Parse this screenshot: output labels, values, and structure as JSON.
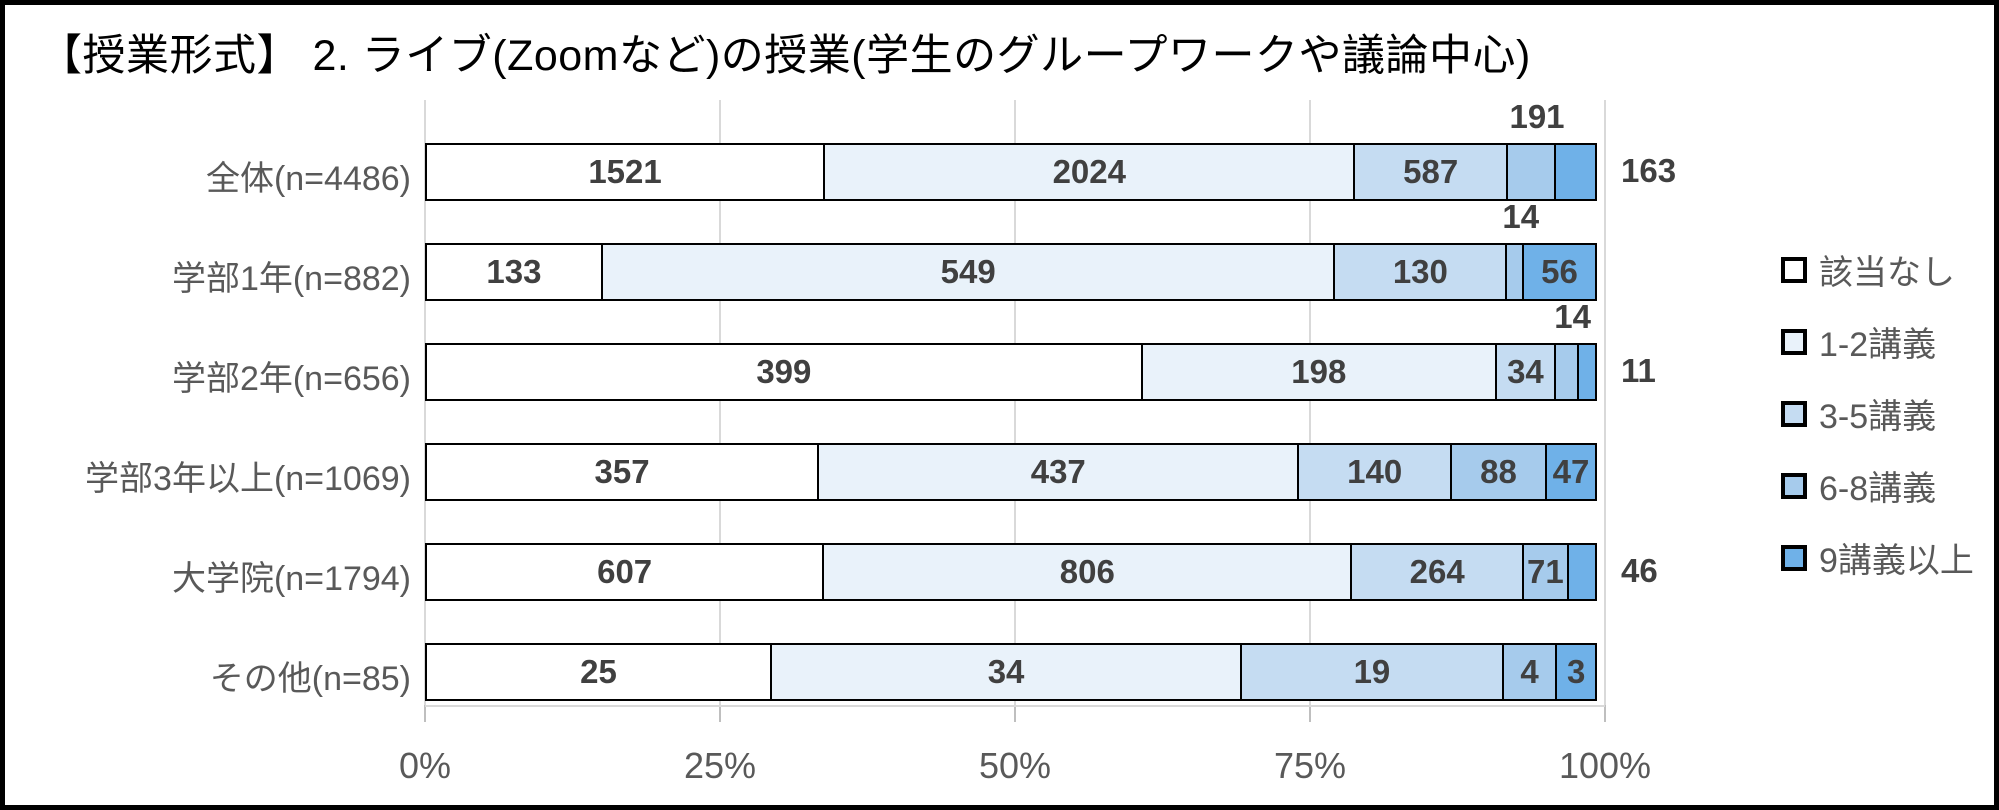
{
  "title": "【授業形式】 2. ライブ(Zoomなど)の授業(学生のグループワークや議論中心)",
  "chart_data": {
    "type": "bar",
    "orientation": "horizontal",
    "stacked": true,
    "normalized_to_percent": true,
    "title": "【授業形式】 2. ライブ(Zoomなど)の授業(学生のグループワークや議論中心)",
    "series_labels": [
      "該当なし",
      "1-2講義",
      "3-5講義",
      "6-8講義",
      "9講義以上"
    ],
    "palette": [
      "#ffffff",
      "#e9f2fa",
      "#c5dcf2",
      "#a6cbec",
      "#6fb1e8"
    ],
    "categories": [
      "全体(n=4486)",
      "学部1年(n=882)",
      "学部2年(n=656)",
      "学部3年以上(n=1069)",
      "大学院(n=1794)",
      "その他(n=85)"
    ],
    "rows": [
      {
        "category": "全体(n=4486)",
        "values": [
          1521,
          2024,
          587,
          191,
          163
        ],
        "label_positions": [
          "in",
          "in",
          "in",
          "above",
          "right"
        ]
      },
      {
        "category": "学部1年(n=882)",
        "values": [
          133,
          549,
          130,
          14,
          56
        ],
        "label_positions": [
          "in",
          "in",
          "in",
          "above",
          "in"
        ]
      },
      {
        "category": "学部2年(n=656)",
        "values": [
          399,
          198,
          34,
          14,
          11
        ],
        "label_positions": [
          "in",
          "in",
          "in",
          "above",
          "right"
        ]
      },
      {
        "category": "学部3年以上(n=1069)",
        "values": [
          357,
          437,
          140,
          88,
          47
        ],
        "label_positions": [
          "in",
          "in",
          "in",
          "in",
          "in"
        ]
      },
      {
        "category": "大学院(n=1794)",
        "values": [
          607,
          806,
          264,
          71,
          46
        ],
        "label_positions": [
          "in",
          "in",
          "in",
          "in",
          "right"
        ]
      },
      {
        "category": "その他(n=85)",
        "values": [
          25,
          34,
          19,
          4,
          3
        ],
        "label_positions": [
          "in",
          "in",
          "in",
          "in",
          "in"
        ]
      }
    ],
    "x_ticks": [
      "0%",
      "25%",
      "50%",
      "75%",
      "100%"
    ],
    "xlim": [
      0,
      100
    ],
    "grid": true,
    "legend_position": "right",
    "colors": {
      "data_label": "#404040",
      "axis_label": "#595959",
      "gridline": "#d9d9d9",
      "segment_border": "#000000"
    }
  }
}
